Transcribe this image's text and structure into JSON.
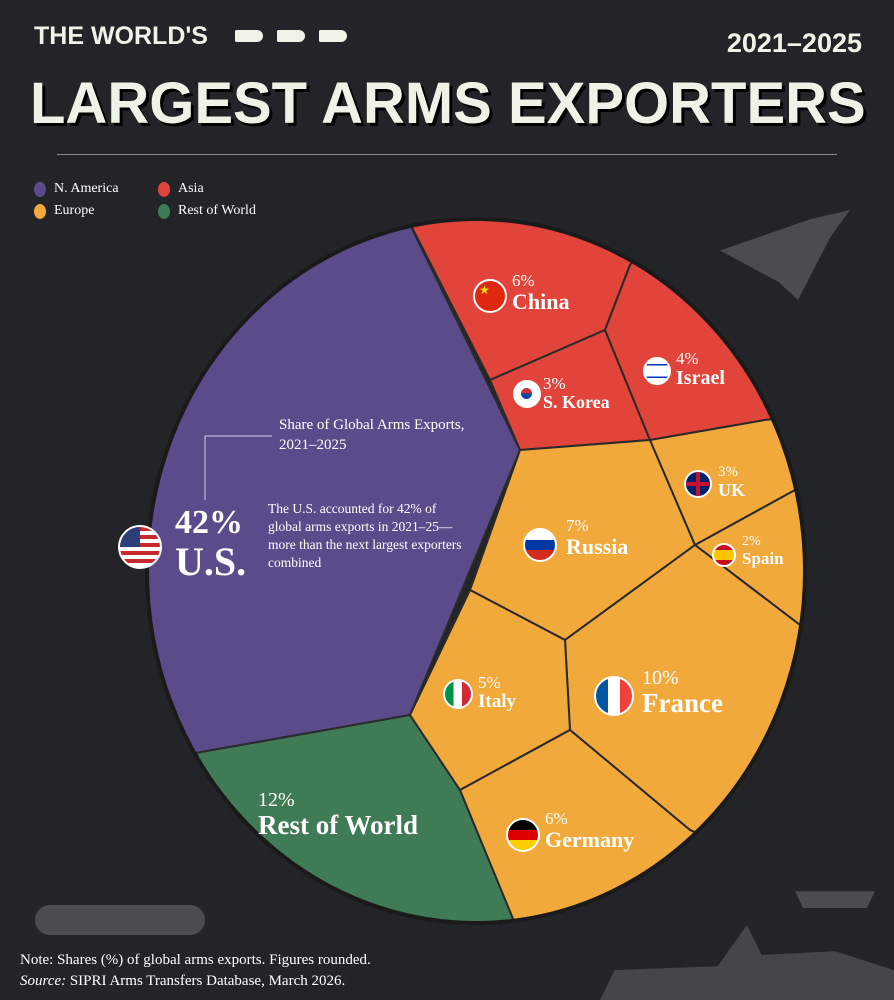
{
  "header": {
    "kicker": "THE WORLD'S",
    "title": "LARGEST ARMS EXPORTERS",
    "years": "2021–2025"
  },
  "legend": [
    {
      "label": "N. America",
      "color": "#5b4b8a"
    },
    {
      "label": "Asia",
      "color": "#e0443a"
    },
    {
      "label": "Europe",
      "color": "#f2a93b"
    },
    {
      "label": "Rest of World",
      "color": "#3f7b54"
    }
  ],
  "annotation": {
    "title": "Share of Global Arms Exports, 2021–2025",
    "body": "The U.S. accounted for 42% of global arms exports in 2021–25—more than the next largest exporters combined"
  },
  "chart_data": {
    "type": "voronoi-treemap",
    "title": "Share of Global Arms Exports, 2021–2025",
    "unit": "%",
    "cells": [
      {
        "name": "U.S.",
        "share": 42,
        "region": "N. America",
        "flag": "us-flag"
      },
      {
        "name": "Rest of World",
        "share": 12,
        "region": "Rest of World"
      },
      {
        "name": "France",
        "share": 10,
        "region": "Europe",
        "flag": "france-flag"
      },
      {
        "name": "Russia",
        "share": 7,
        "region": "Europe",
        "flag": "russia-flag"
      },
      {
        "name": "China",
        "share": 6,
        "region": "Asia",
        "flag": "china-flag"
      },
      {
        "name": "Germany",
        "share": 6,
        "region": "Europe",
        "flag": "germany-flag"
      },
      {
        "name": "Italy",
        "share": 5,
        "region": "Europe",
        "flag": "italy-flag"
      },
      {
        "name": "Israel",
        "share": 4,
        "region": "Asia",
        "flag": "israel-flag"
      },
      {
        "name": "S. Korea",
        "share": 3,
        "region": "Asia",
        "flag": "south-korea-flag"
      },
      {
        "name": "UK",
        "share": 3,
        "region": "Europe",
        "flag": "uk-flag"
      },
      {
        "name": "Spain",
        "share": 2,
        "region": "Europe",
        "flag": "spain-flag"
      }
    ]
  },
  "labels": {
    "us": {
      "pct": "42%",
      "name": "U.S."
    },
    "row": {
      "pct": "12%",
      "name": "Rest of World"
    },
    "france": {
      "pct": "10%",
      "name": "France"
    },
    "russia": {
      "pct": "7%",
      "name": "Russia"
    },
    "china": {
      "pct": "6%",
      "name": "China"
    },
    "germany": {
      "pct": "6%",
      "name": "Germany"
    },
    "italy": {
      "pct": "5%",
      "name": "Italy"
    },
    "israel": {
      "pct": "4%",
      "name": "Israel"
    },
    "korea": {
      "pct": "3%",
      "name": "S. Korea"
    },
    "uk": {
      "pct": "3%",
      "name": "UK"
    },
    "spain": {
      "pct": "2%",
      "name": "Spain"
    }
  },
  "footer": {
    "note": "Note: Shares (%) of global arms exports. Figures rounded.",
    "source_label": "Source:",
    "source": "SIPRI Arms Transfers Database, March 2026."
  }
}
